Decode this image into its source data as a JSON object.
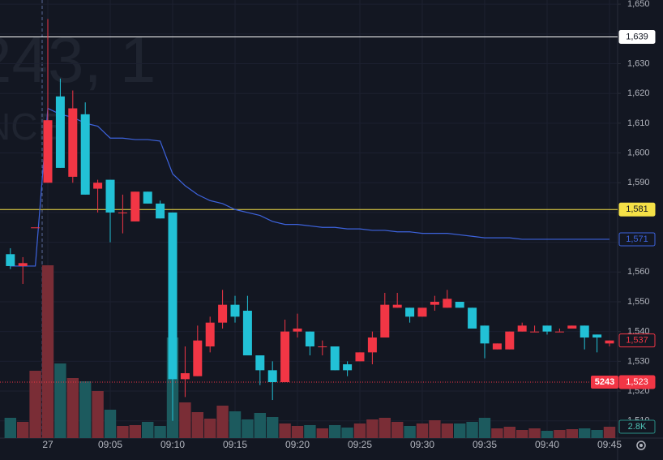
{
  "chart_data": {
    "type": "candlestick",
    "watermark": [
      "243, 1",
      "NCE"
    ],
    "categories": [
      null,
      null,
      null,
      "27",
      null,
      null,
      null,
      null,
      "09:05",
      null,
      null,
      null,
      null,
      "09:10",
      null,
      null,
      null,
      null,
      "09:15",
      null,
      null,
      null,
      null,
      "09:20",
      null,
      null,
      null,
      null,
      "09:25",
      null,
      null,
      null,
      null,
      "09:30",
      null,
      null,
      null,
      null,
      "09:35",
      null,
      null,
      null,
      null,
      "09:40",
      null,
      null,
      null,
      null,
      "09:45"
    ],
    "open": [
      1566,
      1562,
      1575,
      1590,
      1619,
      1592,
      1613,
      1588,
      1591,
      1580,
      1577,
      1587,
      1583,
      1580,
      1524,
      1525,
      1535,
      1543,
      1549,
      1547,
      1532,
      1527,
      1523,
      1540,
      1540,
      1535,
      1535,
      1529,
      1530,
      1533,
      1538,
      1548,
      1548,
      1545,
      1549,
      1548,
      1550,
      1548,
      1542,
      1534,
      1534,
      1540,
      1540,
      1542,
      1540,
      1541,
      1542,
      1539,
      1536
    ],
    "high": [
      1568,
      1565,
      1575,
      1645,
      1625,
      1621,
      1617,
      1591,
      1591,
      1586,
      1587,
      1587,
      1584,
      1580,
      1535,
      1542,
      1545,
      1554,
      1552,
      1552,
      1532,
      1530,
      1544,
      1546,
      1540,
      1537,
      1535,
      1530,
      1533,
      1540,
      1553,
      1553,
      1548,
      1548,
      1552,
      1554,
      1550,
      1548,
      1542,
      1536,
      1540,
      1543,
      1542,
      1542,
      1541,
      1542,
      1542,
      1539,
      1537
    ],
    "low": [
      1561,
      1556,
      1575,
      1590,
      1595,
      1590,
      1586,
      1580,
      1570,
      1573,
      1577,
      1583,
      1578,
      1510,
      1518,
      1525,
      1533,
      1541,
      1543,
      1532,
      1522,
      1517,
      1523,
      1538,
      1532,
      1532,
      1527,
      1525,
      1530,
      1529,
      1538,
      1548,
      1543,
      1545,
      1547,
      1548,
      1548,
      1541,
      1531,
      1534,
      1534,
      1540,
      1540,
      1539,
      1540,
      1541,
      1534,
      1533,
      1535
    ],
    "close": [
      1562,
      1563,
      1575,
      1611,
      1595,
      1615,
      1586,
      1590,
      1580,
      1580,
      1587,
      1583,
      1578,
      1524,
      1526,
      1537,
      1543,
      1549,
      1545,
      1532,
      1527,
      1523,
      1540,
      1541,
      1535,
      1535,
      1527,
      1527,
      1533,
      1538,
      1549,
      1549,
      1545,
      1548,
      1550,
      1551,
      1548,
      1541,
      1536,
      1536,
      1540,
      1542,
      1540,
      1540,
      1540,
      1542,
      1538,
      1538,
      1537
    ],
    "up_color": "#f23645",
    "down_color": "#22c1d6",
    "volume": {
      "values": [
        5000,
        4000,
        16600,
        42600,
        18400,
        14800,
        14000,
        11600,
        7000,
        3000,
        3200,
        4000,
        3000,
        24800,
        8800,
        6400,
        4800,
        8000,
        6600,
        4600,
        6200,
        5200,
        3600,
        3000,
        3200,
        2400,
        3200,
        2600,
        3600,
        4600,
        5000,
        4000,
        3000,
        3600,
        4400,
        3600,
        3600,
        4000,
        5000,
        2400,
        2800,
        2000,
        2400,
        1800,
        2000,
        2200,
        2400,
        2000,
        2800
      ],
      "value_labels": [
        null,
        null,
        null,
        null,
        null,
        null,
        null,
        null,
        null,
        null,
        null,
        null,
        null,
        null,
        null,
        null,
        null,
        null,
        null,
        null,
        null,
        null,
        null,
        null,
        null,
        null,
        null,
        null,
        null,
        null,
        null,
        null,
        null,
        null,
        null,
        null,
        null,
        null,
        null,
        null,
        null,
        null,
        null,
        null,
        null,
        null,
        null,
        null,
        "2.8K"
      ],
      "up_color": "#7a2d36",
      "down_color": "#1c5a5e"
    },
    "y2lim": [
      0,
      108000
    ],
    "vwap": {
      "color": "#3d63dd",
      "values": [
        1562,
        1562,
        1562,
        1615,
        1613,
        1612,
        1610,
        1609,
        1605,
        1605,
        1604.5,
        1604.5,
        1604,
        1593,
        1589,
        1586,
        1584,
        1583,
        1581,
        1580,
        1579,
        1577,
        1576,
        1576,
        1575.5,
        1575,
        1575,
        1574.5,
        1574.5,
        1574,
        1574,
        1573.5,
        1573.5,
        1573,
        1573,
        1573,
        1572.5,
        1572,
        1571.5,
        1571.5,
        1571.5,
        1571,
        1571,
        1571,
        1571,
        1571,
        1571,
        1571,
        1571
      ]
    },
    "price_tags": [
      {
        "value": 1639,
        "label": "1,639",
        "color": "#ffffff",
        "style": "filled",
        "line": "solid"
      },
      {
        "value": 1581,
        "label": "1,581",
        "color": "#f5e147",
        "style": "filled",
        "line": "solid"
      },
      {
        "value": 1571,
        "label": "1,571",
        "color": "#3d63dd",
        "style": "outline",
        "line": "none"
      },
      {
        "value": 1537,
        "label": "1,537",
        "color": "#f23645",
        "style": "outline",
        "line": "none"
      },
      {
        "value": 1523,
        "label": "1,523",
        "color": "#f23645",
        "style": "filled",
        "line": "dotted",
        "tag": "5243"
      }
    ],
    "ylim": [
      1504.2,
      1651.4
    ],
    "yticks": [
      {
        "value": 1510,
        "label": "1,510"
      },
      {
        "value": 1520,
        "label": "1,520"
      },
      {
        "value": 1530,
        "label": "1,530"
      },
      {
        "value": 1540,
        "label": "1,540"
      },
      {
        "value": 1550,
        "label": "1,550"
      },
      {
        "value": 1560,
        "label": "1,560"
      },
      {
        "value": 1570,
        "label": "1,570"
      },
      {
        "value": 1580,
        "label": "1,580"
      },
      {
        "value": 1590,
        "label": "1,590"
      },
      {
        "value": 1600,
        "label": "1,600"
      },
      {
        "value": 1610,
        "label": "1,610"
      },
      {
        "value": 1620,
        "label": "1,620"
      },
      {
        "value": 1630,
        "label": "1,630"
      },
      {
        "value": 1640,
        "label": "1,640"
      },
      {
        "value": 1650,
        "label": "1,650"
      }
    ],
    "grid": true
  }
}
